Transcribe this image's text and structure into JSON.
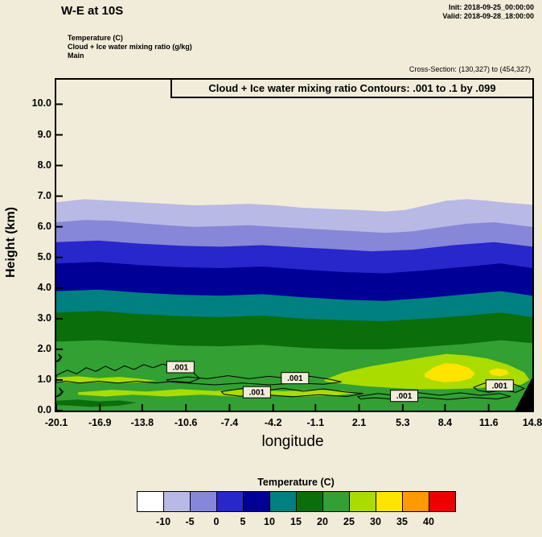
{
  "header": {
    "title": "W-E at 10S",
    "init": "Init: 2018-09-25_00:00:00",
    "valid": "Valid: 2018-09-28_18:00:00",
    "fields": {
      "temperature": "Temperature (C)",
      "cloud": "Cloud + Ice water mixing ratio (g/kg)",
      "model": "Main"
    },
    "cross_section": "Cross-Section: (130,327) to (454,327)"
  },
  "plot": {
    "contour_title": "Cloud + Ice water mixing ratio Contours: .001 to .1 by .099",
    "xlabel": "longitude",
    "ylabel": "Height (km)"
  },
  "chart_data": {
    "type": "filled-contour-cross-section",
    "title": "Cloud + Ice water mixing ratio Contours: .001 to .1 by .099",
    "xlabel": "longitude",
    "ylabel": "Height (km)",
    "xlim": [
      -20.1,
      14.8
    ],
    "ylim": [
      0,
      10.8
    ],
    "x_ticks": [
      "-20.1",
      "-16.9",
      "-13.8",
      "-10.6",
      "-7.4",
      "-4.2",
      "-1.1",
      "2.1",
      "5.3",
      "8.4",
      "11.6",
      "14.8"
    ],
    "y_ticks": [
      "0.0",
      "1.0",
      "2.0",
      "3.0",
      "4.0",
      "5.0",
      "6.0",
      "7.0",
      "8.0",
      "9.0",
      "10.0"
    ],
    "background": "#f1ecd9",
    "temperature_fill_bands": [
      {
        "level": -10,
        "color": "#b9b9e6",
        "points": [
          [
            -20.1,
            6.8
          ],
          [
            -18,
            6.9
          ],
          [
            -16,
            6.85
          ],
          [
            -14,
            6.8
          ],
          [
            -12,
            6.75
          ],
          [
            -10,
            6.7
          ],
          [
            -8,
            6.72
          ],
          [
            -6,
            6.75
          ],
          [
            -4,
            6.7
          ],
          [
            -2,
            6.62
          ],
          [
            0,
            6.58
          ],
          [
            2,
            6.55
          ],
          [
            4,
            6.5
          ],
          [
            5.5,
            6.55
          ],
          [
            7,
            6.7
          ],
          [
            8.5,
            6.85
          ],
          [
            10,
            6.9
          ],
          [
            11.5,
            6.85
          ],
          [
            13,
            6.78
          ],
          [
            14.8,
            6.72
          ]
        ]
      },
      {
        "level": -5,
        "color": "#8787d9",
        "points": [
          [
            -20.1,
            6.15
          ],
          [
            -18,
            6.22
          ],
          [
            -16,
            6.2
          ],
          [
            -14,
            6.12
          ],
          [
            -12,
            6.05
          ],
          [
            -10,
            6.0
          ],
          [
            -8,
            6.02
          ],
          [
            -6,
            6.05
          ],
          [
            -4,
            6.0
          ],
          [
            -2,
            5.95
          ],
          [
            0,
            5.9
          ],
          [
            2,
            5.85
          ],
          [
            4,
            5.8
          ],
          [
            6,
            5.85
          ],
          [
            8,
            5.98
          ],
          [
            10,
            6.1
          ],
          [
            12,
            6.15
          ],
          [
            14.8,
            6.0
          ]
        ]
      },
      {
        "level": 0,
        "color": "#2727cc",
        "points": [
          [
            -20.1,
            5.5
          ],
          [
            -17,
            5.55
          ],
          [
            -14,
            5.45
          ],
          [
            -11,
            5.38
          ],
          [
            -8,
            5.35
          ],
          [
            -5,
            5.4
          ],
          [
            -2,
            5.32
          ],
          [
            0,
            5.28
          ],
          [
            3,
            5.2
          ],
          [
            6,
            5.25
          ],
          [
            9,
            5.4
          ],
          [
            12,
            5.5
          ],
          [
            14.8,
            5.35
          ]
        ]
      },
      {
        "level": 5,
        "color": "#000096",
        "points": [
          [
            -20.1,
            4.8
          ],
          [
            -17,
            4.85
          ],
          [
            -14,
            4.75
          ],
          [
            -11,
            4.68
          ],
          [
            -8,
            4.65
          ],
          [
            -5,
            4.7
          ],
          [
            -2,
            4.6
          ],
          [
            1,
            4.52
          ],
          [
            4,
            4.48
          ],
          [
            7,
            4.58
          ],
          [
            10,
            4.7
          ],
          [
            12.5,
            4.8
          ],
          [
            14.8,
            4.65
          ]
        ]
      },
      {
        "level": 10,
        "color": "#008080",
        "points": [
          [
            -20.1,
            3.9
          ],
          [
            -17,
            3.95
          ],
          [
            -14,
            3.85
          ],
          [
            -11,
            3.78
          ],
          [
            -8,
            3.75
          ],
          [
            -5,
            3.8
          ],
          [
            -2,
            3.7
          ],
          [
            1,
            3.62
          ],
          [
            4,
            3.58
          ],
          [
            7,
            3.68
          ],
          [
            10,
            3.8
          ],
          [
            12.5,
            3.9
          ],
          [
            14.8,
            3.75
          ]
        ]
      },
      {
        "level": 15,
        "color": "#0a6e0a",
        "points": [
          [
            -20.1,
            3.2
          ],
          [
            -17,
            3.25
          ],
          [
            -14,
            3.15
          ],
          [
            -11,
            3.08
          ],
          [
            -8,
            3.05
          ],
          [
            -5,
            3.1
          ],
          [
            -2,
            3.0
          ],
          [
            1,
            2.95
          ],
          [
            4,
            2.92
          ],
          [
            7,
            3.0
          ],
          [
            10,
            3.1
          ],
          [
            12.5,
            3.2
          ],
          [
            14.8,
            3.05
          ]
        ]
      },
      {
        "level": 20,
        "color": "#32a032",
        "points": [
          [
            -20.1,
            2.25
          ],
          [
            -17,
            2.3
          ],
          [
            -14,
            2.2
          ],
          [
            -11,
            2.12
          ],
          [
            -8,
            2.1
          ],
          [
            -5,
            2.15
          ],
          [
            -2,
            2.05
          ],
          [
            1,
            2.0
          ],
          [
            4,
            2.0
          ],
          [
            7,
            2.08
          ],
          [
            10,
            2.18
          ],
          [
            12.5,
            2.3
          ],
          [
            14.8,
            2.2
          ]
        ]
      }
    ],
    "temperature_blobs": [
      {
        "level": 25,
        "color": "#aadc00",
        "points": [
          [
            -0.5,
            1.0
          ],
          [
            1,
            1.25
          ],
          [
            3,
            1.45
          ],
          [
            5,
            1.6
          ],
          [
            7,
            1.75
          ],
          [
            8.5,
            1.85
          ],
          [
            10,
            1.8
          ],
          [
            11.5,
            1.7
          ],
          [
            13,
            1.5
          ],
          [
            14.2,
            1.25
          ],
          [
            14.6,
            1.0
          ],
          [
            14.0,
            0.85
          ],
          [
            12.5,
            0.78
          ],
          [
            10.5,
            0.73
          ],
          [
            8.5,
            0.7
          ],
          [
            6.5,
            0.7
          ],
          [
            4.5,
            0.74
          ],
          [
            2.5,
            0.8
          ],
          [
            0.8,
            0.88
          ],
          [
            -0.3,
            0.94
          ]
        ]
      },
      {
        "level": 25,
        "color": "#aadc00",
        "points": [
          [
            -20.1,
            1.08
          ],
          [
            -18.5,
            1.12
          ],
          [
            -17,
            1.06
          ],
          [
            -15.5,
            1.1
          ],
          [
            -14,
            1.04
          ],
          [
            -12.8,
            0.98
          ],
          [
            -14,
            0.92
          ],
          [
            -15.5,
            0.9
          ],
          [
            -17,
            0.93
          ],
          [
            -18.5,
            0.9
          ],
          [
            -20.1,
            0.94
          ]
        ]
      },
      {
        "level": 25,
        "color": "#aadc00",
        "points": [
          [
            -18.5,
            0.6
          ],
          [
            -16,
            0.68
          ],
          [
            -13.5,
            0.62
          ],
          [
            -11,
            0.7
          ],
          [
            -8.5,
            0.64
          ],
          [
            -6,
            0.7
          ],
          [
            -3.5,
            0.63
          ],
          [
            -1,
            0.68
          ],
          [
            1,
            0.64
          ],
          [
            2,
            0.58
          ],
          [
            0.5,
            0.5
          ],
          [
            -2,
            0.46
          ],
          [
            -4.5,
            0.52
          ],
          [
            -7,
            0.46
          ],
          [
            -9.5,
            0.52
          ],
          [
            -12,
            0.46
          ],
          [
            -14.5,
            0.52
          ],
          [
            -16.5,
            0.46
          ],
          [
            -18.5,
            0.52
          ]
        ]
      },
      {
        "level": 30,
        "color": "#ffe400",
        "points": [
          [
            6.9,
            1.2
          ],
          [
            7.6,
            1.42
          ],
          [
            8.4,
            1.55
          ],
          [
            9.3,
            1.52
          ],
          [
            10.1,
            1.4
          ],
          [
            10.6,
            1.22
          ],
          [
            10.3,
            1.05
          ],
          [
            9.4,
            0.95
          ],
          [
            8.3,
            0.93
          ],
          [
            7.4,
            1.0
          ],
          [
            6.9,
            1.1
          ]
        ]
      },
      {
        "level": 30,
        "color": "#ffe400",
        "points": [
          [
            11.6,
            1.3
          ],
          [
            12.2,
            1.38
          ],
          [
            12.9,
            1.32
          ],
          [
            13.1,
            1.2
          ],
          [
            12.5,
            1.12
          ],
          [
            11.8,
            1.16
          ]
        ]
      },
      {
        "level": 15,
        "color": "#0a6e0a",
        "points": [
          [
            -20.1,
            0.32
          ],
          [
            -18.5,
            0.36
          ],
          [
            -17,
            0.3
          ],
          [
            -15.5,
            0.33
          ],
          [
            -14.2,
            0.26
          ],
          [
            -15.5,
            0.16
          ],
          [
            -17.5,
            0.12
          ],
          [
            -19,
            0.16
          ],
          [
            -20.1,
            0.18
          ]
        ]
      }
    ],
    "cloud_contours": {
      "label": ".001",
      "levels_text": ".001 to .1 by .099",
      "loops": [
        [
          [
            -20.1,
            1.15
          ],
          [
            -19.3,
            1.32
          ],
          [
            -18.6,
            1.2
          ],
          [
            -17.9,
            1.4
          ],
          [
            -17.2,
            1.28
          ],
          [
            -16.5,
            1.45
          ],
          [
            -15.8,
            1.3
          ],
          [
            -15.1,
            1.46
          ],
          [
            -14.4,
            1.34
          ],
          [
            -13.7,
            1.5
          ],
          [
            -13,
            1.4
          ],
          [
            -12.3,
            1.52
          ],
          [
            -11.6,
            1.42
          ],
          [
            -10.9,
            1.5
          ],
          [
            -10.2,
            1.3
          ],
          [
            -9.6,
            1.05
          ],
          [
            -10.3,
            0.92
          ],
          [
            -11.5,
            0.96
          ],
          [
            -12.8,
            0.9
          ],
          [
            -14.2,
            0.96
          ],
          [
            -15.6,
            0.9
          ],
          [
            -17,
            0.96
          ],
          [
            -18.4,
            0.9
          ],
          [
            -19.4,
            0.96
          ],
          [
            -20.1,
            0.92
          ]
        ],
        [
          [
            -12,
            1.0
          ],
          [
            -10.5,
            1.1
          ],
          [
            -9,
            1.04
          ],
          [
            -7.5,
            1.14
          ],
          [
            -6,
            1.04
          ],
          [
            -4.5,
            1.12
          ],
          [
            -3,
            1.04
          ],
          [
            -1.5,
            1.12
          ],
          [
            0,
            1.02
          ],
          [
            0.8,
            0.94
          ],
          [
            -0.5,
            0.86
          ],
          [
            -2.5,
            0.9
          ],
          [
            -4.5,
            0.84
          ],
          [
            -6.5,
            0.9
          ],
          [
            -8.5,
            0.84
          ],
          [
            -10.5,
            0.9
          ],
          [
            -11.8,
            0.94
          ]
        ],
        [
          [
            -8,
            0.62
          ],
          [
            -6.5,
            0.72
          ],
          [
            -5,
            0.63
          ],
          [
            -3.5,
            0.73
          ],
          [
            -2,
            0.63
          ],
          [
            -0.5,
            0.71
          ],
          [
            1,
            0.61
          ],
          [
            2.4,
            0.56
          ],
          [
            1.2,
            0.46
          ],
          [
            -0.8,
            0.52
          ],
          [
            -2.8,
            0.45
          ],
          [
            -4.8,
            0.52
          ],
          [
            -6.6,
            0.47
          ],
          [
            -7.8,
            0.53
          ]
        ],
        [
          [
            2,
            0.46
          ],
          [
            3.5,
            0.56
          ],
          [
            5,
            0.48
          ],
          [
            6.5,
            0.58
          ],
          [
            8,
            0.5
          ],
          [
            9.5,
            0.58
          ],
          [
            11,
            0.5
          ],
          [
            12.4,
            0.56
          ],
          [
            13.2,
            0.46
          ],
          [
            12.2,
            0.38
          ],
          [
            10.4,
            0.43
          ],
          [
            8.6,
            0.36
          ],
          [
            6.8,
            0.43
          ],
          [
            5,
            0.36
          ],
          [
            3.2,
            0.42
          ],
          [
            2.2,
            0.38
          ]
        ],
        [
          [
            10.5,
            0.76
          ],
          [
            11.3,
            0.9
          ],
          [
            12,
            0.8
          ],
          [
            12.8,
            0.96
          ],
          [
            13.5,
            0.86
          ],
          [
            14.2,
            0.72
          ],
          [
            13.6,
            0.6
          ],
          [
            12.6,
            0.66
          ],
          [
            11.6,
            0.6
          ],
          [
            10.8,
            0.66
          ]
        ],
        [
          [
            -20.1,
            0.45
          ],
          [
            -19.7,
            0.6
          ],
          [
            -19.9,
            0.75
          ],
          [
            -19.6,
            0.62
          ],
          [
            -19.8,
            0.5
          ]
        ],
        [
          [
            -20.1,
            1.6
          ],
          [
            -19.8,
            1.72
          ],
          [
            -19.95,
            1.85
          ],
          [
            -19.7,
            1.75
          ],
          [
            -19.9,
            1.62
          ]
        ]
      ],
      "labels": [
        {
          "x": -11.0,
          "y": 1.42
        },
        {
          "x": -2.6,
          "y": 1.06
        },
        {
          "x": -5.4,
          "y": 0.6
        },
        {
          "x": 5.4,
          "y": 0.48
        },
        {
          "x": 12.4,
          "y": 0.82
        }
      ]
    },
    "terrain": [
      [
        13.55,
        0
      ],
      [
        13.9,
        0.3
      ],
      [
        14.2,
        0.55
      ],
      [
        14.5,
        0.8
      ],
      [
        14.8,
        1.05
      ],
      [
        14.8,
        0
      ]
    ],
    "colorbar": {
      "title": "Temperature (C)",
      "colors": [
        "#ffffff",
        "#b9b9e6",
        "#8787d9",
        "#2727cc",
        "#000096",
        "#008080",
        "#0a6e0a",
        "#32a032",
        "#aadc00",
        "#ffe400",
        "#ff9900",
        "#ee0000"
      ],
      "tick_labels": [
        "-10",
        "-5",
        "0",
        "5",
        "10",
        "15",
        "20",
        "25",
        "30",
        "35",
        "40"
      ]
    }
  }
}
